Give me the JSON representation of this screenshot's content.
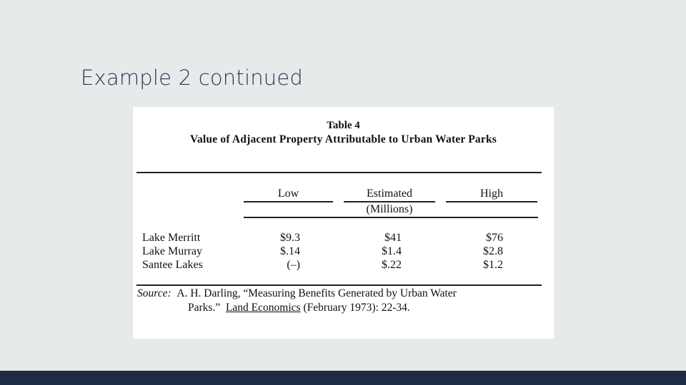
{
  "slide": {
    "title": "Example 2 continued"
  },
  "table": {
    "number": "Table 4",
    "title": "Value of Adjacent Property Attributable to Urban Water Parks",
    "columns": {
      "low": "Low",
      "estimated": "Estimated",
      "estimated_unit": "(Millions)",
      "high": "High"
    },
    "rows": [
      {
        "label": "Lake Merritt",
        "low": "$9.3",
        "estimated": "$41",
        "high": "$76"
      },
      {
        "label": "Lake Murray",
        "low": "$.14",
        "estimated": "$1.4",
        "high": "$2.8"
      },
      {
        "label": "Santee Lakes",
        "low": "(–)",
        "estimated": "$.22",
        "high": "$1.2"
      }
    ],
    "source": {
      "prefix": "Source:",
      "line1": "A. H. Darling, “Measuring Benefits Generated by Urban Water",
      "line2_start": "Parks.”",
      "journal": "Land Economics",
      "line2_end": "(February 1973):  22-34."
    }
  },
  "colors": {
    "background": "#e6eaeb",
    "title_text": "#2b3a4f",
    "bottom_bar": "#1e2b44"
  }
}
